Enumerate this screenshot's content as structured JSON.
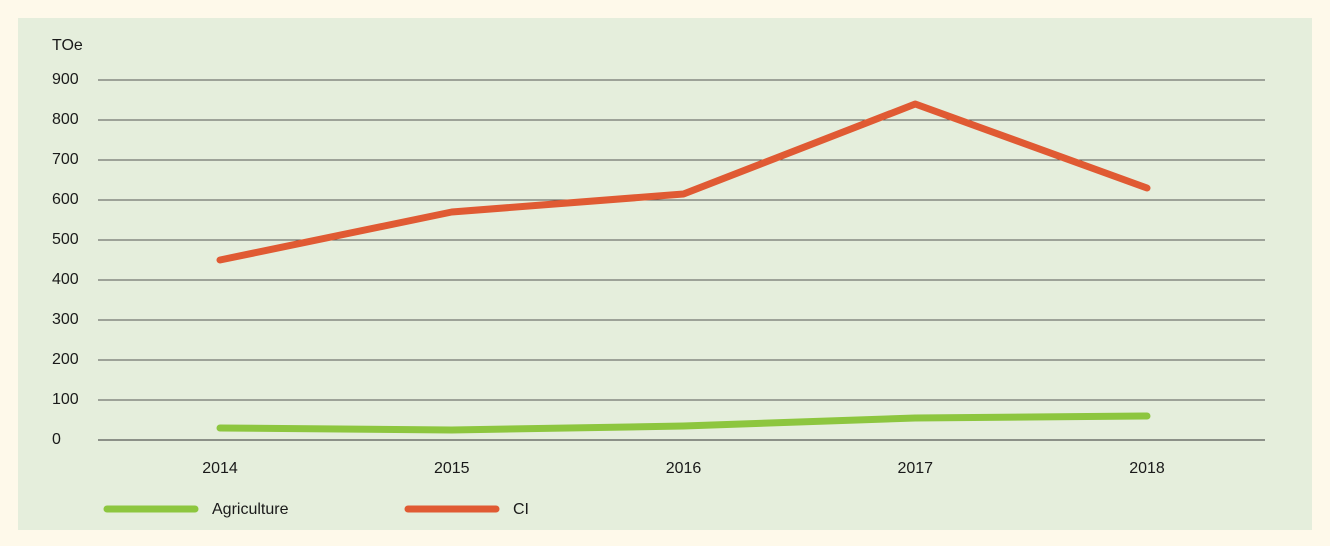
{
  "chart_data": {
    "type": "line",
    "y_label": "TOe",
    "categories": [
      "2014",
      "2015",
      "2016",
      "2017",
      "2018"
    ],
    "series": [
      {
        "name": "Agriculture",
        "color": "#8dc63f",
        "values": [
          30,
          25,
          35,
          55,
          60
        ]
      },
      {
        "name": "CI",
        "color": "#e05a33",
        "values": [
          450,
          570,
          615,
          840,
          630
        ]
      }
    ],
    "ylim": [
      0,
      900
    ],
    "yticks": [
      0,
      100,
      200,
      300,
      400,
      500,
      600,
      700,
      800,
      900
    ],
    "grid": true,
    "legend": "bottom"
  }
}
